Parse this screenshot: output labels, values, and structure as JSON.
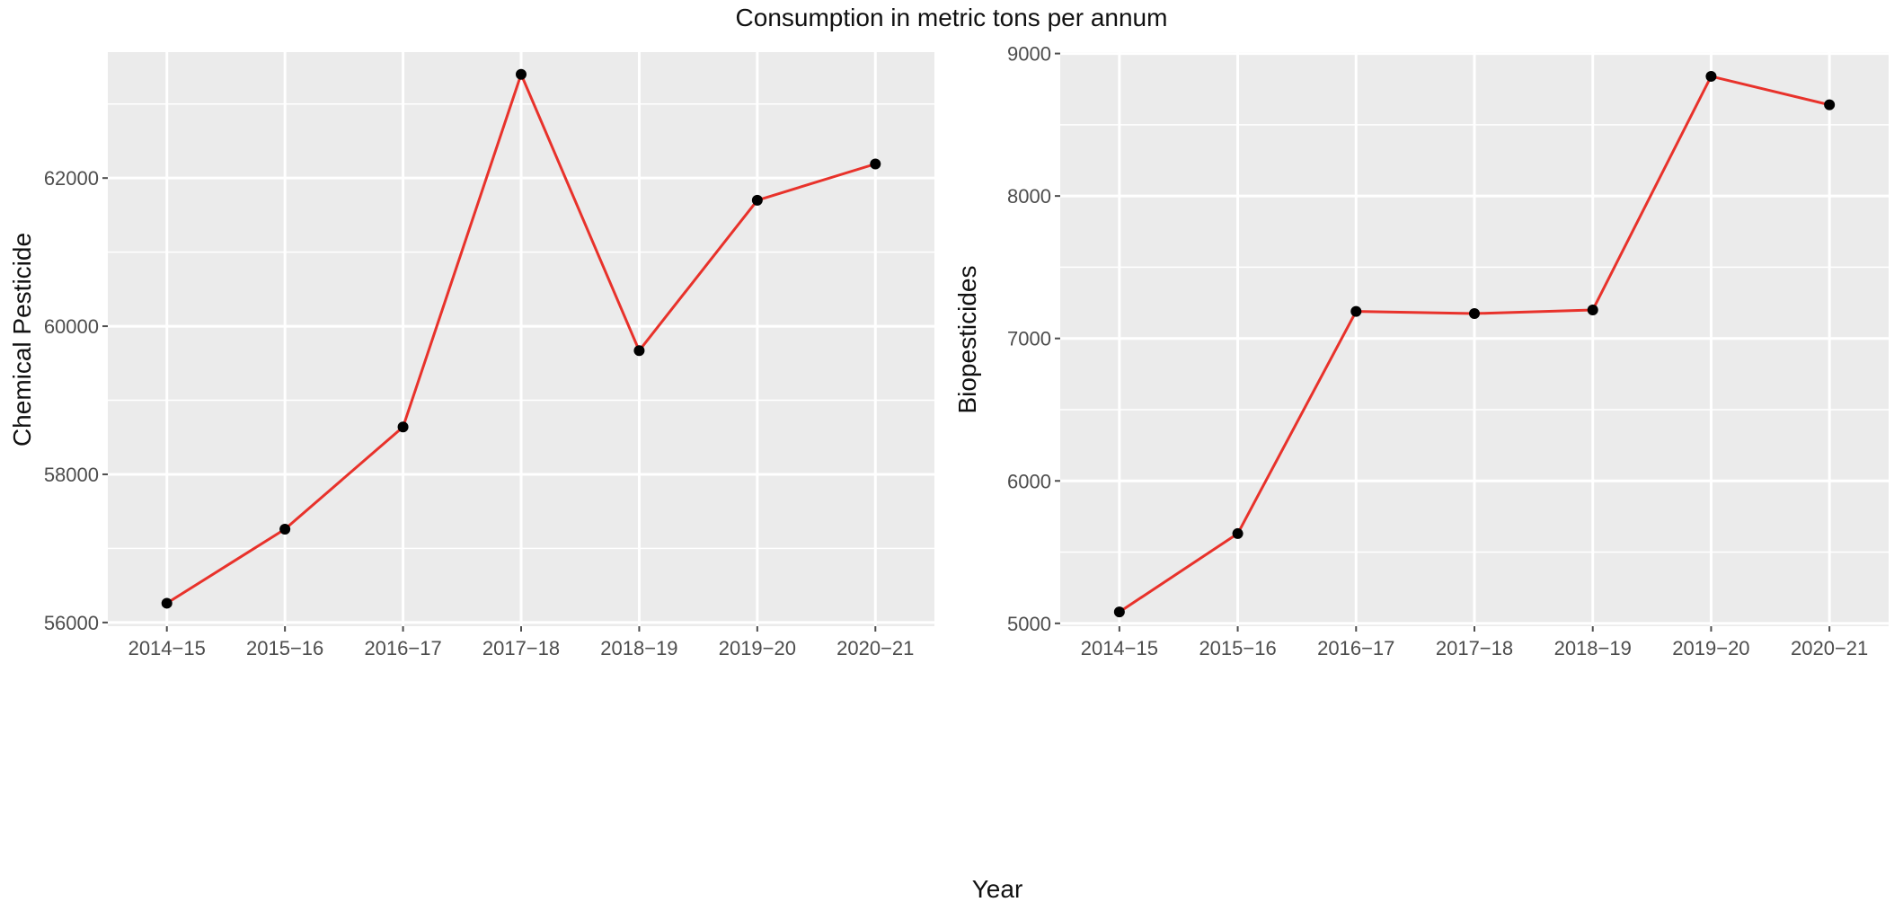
{
  "figure": {
    "title": "Consumption in metric tons per annum",
    "shared_xlabel": "Year"
  },
  "chart_data": [
    {
      "type": "line",
      "categories": [
        "2014−15",
        "2015−16",
        "2016−17",
        "2017−18",
        "2018−19",
        "2019−20",
        "2020−21"
      ],
      "series": [
        {
          "values": [
            56260,
            57260,
            58640,
            63400,
            59670,
            61700,
            62190
          ],
          "color": "#e8322b"
        }
      ],
      "ylabel": "Chemical Pesticide",
      "ylim": [
        55950,
        63700
      ],
      "yticks": [
        56000,
        58000,
        60000,
        62000
      ],
      "grid": true,
      "background": "#ebebeb",
      "point_color": "#000000"
    },
    {
      "type": "line",
      "categories": [
        "2014−15",
        "2015−16",
        "2016−17",
        "2017−18",
        "2018−19",
        "2019−20",
        "2020−21"
      ],
      "series": [
        {
          "values": [
            5080,
            5630,
            7190,
            7175,
            7200,
            8840,
            8640
          ],
          "color": "#e8322b"
        }
      ],
      "ylabel": "Biopesticides",
      "ylim": [
        4980,
        9010
      ],
      "yticks": [
        5000,
        6000,
        7000,
        8000,
        9000
      ],
      "grid": true,
      "background": "#ebebeb",
      "point_color": "#000000"
    }
  ]
}
